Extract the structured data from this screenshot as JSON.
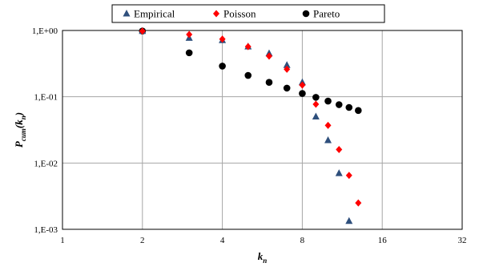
{
  "chart_data": {
    "type": "scatter",
    "title": "",
    "xlabel": {
      "base": "k",
      "sub": "n"
    },
    "ylabel": {
      "base": "P",
      "sub1": "cum",
      "mid": "(k",
      "sub2": "n",
      "end": ")"
    },
    "x_scale": "log2",
    "y_scale": "log10",
    "xlim": [
      1,
      32
    ],
    "ylim": [
      0.001,
      1
    ],
    "x_ticks": [
      1,
      2,
      4,
      8,
      16,
      32
    ],
    "x_tick_labels": [
      "1",
      "2",
      "4",
      "8",
      "16",
      "32"
    ],
    "y_ticks": [
      1,
      0.1,
      0.01,
      0.001
    ],
    "y_tick_labels": [
      "1,E+00",
      "1,E-01",
      "1,E-02",
      "1,E-03"
    ],
    "grid": true,
    "legend_position": "top-center",
    "series": [
      {
        "name": "Empirical",
        "marker": "triangle",
        "color": "#2e4f7c",
        "x": [
          2,
          3,
          4,
          5,
          6,
          7,
          8,
          9,
          10,
          11,
          12
        ],
        "y": [
          0.98,
          0.77,
          0.71,
          0.57,
          0.45,
          0.3,
          0.165,
          0.05,
          0.022,
          0.007,
          0.00133
        ]
      },
      {
        "name": "Poisson",
        "marker": "diamond",
        "color": "#ff0000",
        "x": [
          2,
          3,
          4,
          5,
          6,
          7,
          8,
          9,
          10,
          11,
          12,
          13
        ],
        "y": [
          0.98,
          0.87,
          0.74,
          0.57,
          0.41,
          0.26,
          0.15,
          0.077,
          0.037,
          0.016,
          0.0065,
          0.0025
        ]
      },
      {
        "name": "Pareto",
        "marker": "circle",
        "color": "#000000",
        "x": [
          2,
          3,
          4,
          5,
          6,
          7,
          8,
          9,
          10,
          11,
          12,
          13
        ],
        "y": [
          0.98,
          0.46,
          0.29,
          0.21,
          0.165,
          0.135,
          0.112,
          0.098,
          0.086,
          0.076,
          0.069,
          0.062
        ]
      }
    ]
  }
}
